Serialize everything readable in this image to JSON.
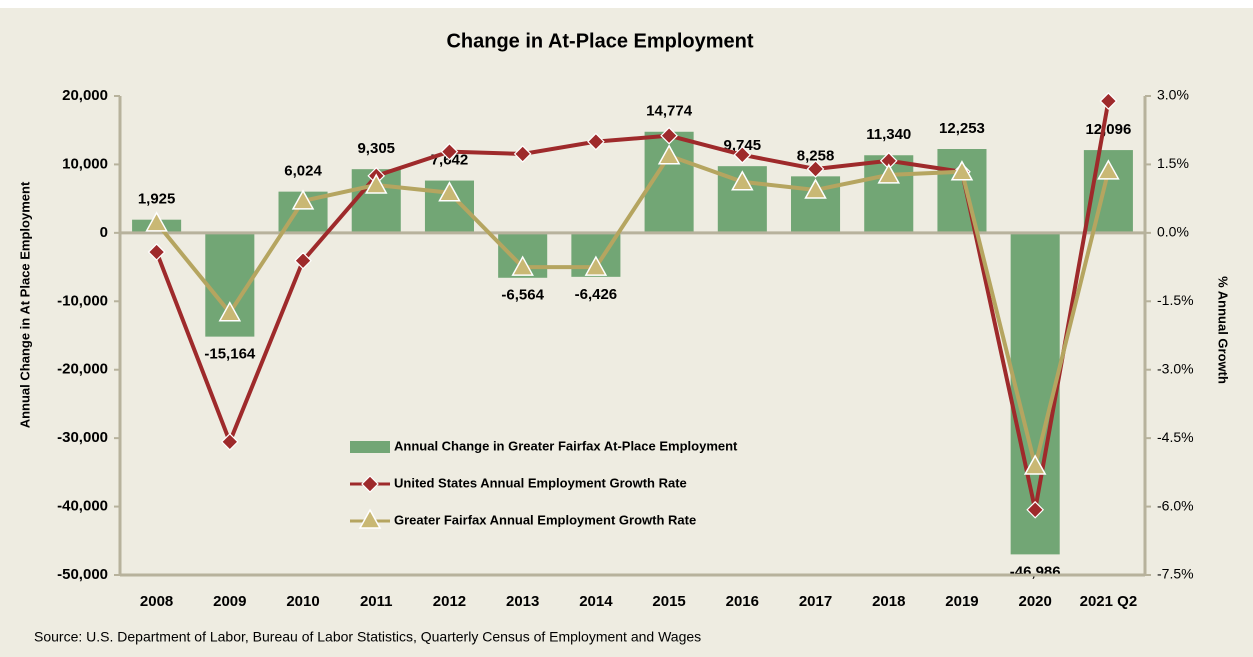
{
  "chart_data": {
    "type": "bar",
    "title": "Change in At-Place Employment",
    "ylabel": "Annual Change in At Place Employment",
    "y2label": "% Annual Growth",
    "source": "Source: U.S. Department of Labor, Bureau of Labor Statistics, Quarterly Census of Employment and Wages",
    "categories": [
      "2008",
      "2009",
      "2010",
      "2011",
      "2012",
      "2013",
      "2014",
      "2015",
      "2016",
      "2017",
      "2018",
      "2019",
      "2020",
      "2021 Q2"
    ],
    "series": [
      {
        "name": "Annual Change in Greater Fairfax At-Place Employment",
        "type": "bar",
        "color": "#72a675",
        "values": [
          1925,
          -15164,
          6024,
          9305,
          7642,
          -6564,
          -6426,
          14774,
          9745,
          8258,
          11340,
          12253,
          -46986,
          12096
        ],
        "value_labels": [
          "1,925",
          "-15,164",
          "6,024",
          "9,305",
          "7,642",
          "-6,564",
          "-6,426",
          "14,774",
          "9,745",
          "8,258",
          "11,340",
          "12,253",
          "-46,986",
          "12,096"
        ]
      },
      {
        "name": "United States Annual Employment Growth Rate",
        "type": "line",
        "axis": "y2",
        "marker": "diamond",
        "color": "#9e2a2b",
        "values": [
          -0.42,
          -4.58,
          -0.61,
          1.25,
          1.78,
          1.73,
          2.0,
          2.13,
          1.71,
          1.4,
          1.58,
          1.34,
          -6.07,
          2.89
        ]
      },
      {
        "name": "Greater Fairfax Annual Employment Growth Rate",
        "type": "line",
        "axis": "y2",
        "marker": "triangle",
        "color": "#b5a560",
        "values": [
          0.22,
          -1.75,
          0.7,
          1.05,
          0.88,
          -0.75,
          -0.75,
          1.69,
          1.12,
          0.94,
          1.27,
          1.34,
          -5.11,
          1.36
        ]
      }
    ],
    "ylim": [
      -50000,
      20000
    ],
    "yticks": [
      {
        "value": -50000,
        "label": "-50,000"
      },
      {
        "value": -40000,
        "label": "-40,000"
      },
      {
        "value": -30000,
        "label": "-30,000"
      },
      {
        "value": -20000,
        "label": "-20,000"
      },
      {
        "value": -10000,
        "label": "-10,000"
      },
      0,
      {
        "value": 10000,
        "label": "10,000"
      },
      {
        "value": 20000,
        "label": "20,000"
      }
    ],
    "y2lim": [
      -7.5,
      3
    ],
    "y2ticks": [
      {
        "value": -7.5,
        "label": "-7.5%"
      },
      {
        "value": -6,
        "label": "-6.0%"
      },
      {
        "value": -4.5,
        "label": "-4.5%"
      },
      {
        "value": -3,
        "label": "-3.0%"
      },
      {
        "value": -1.5,
        "label": "-1.5%"
      },
      {
        "value": 0,
        "label": "0.0%"
      },
      {
        "value": 1.5,
        "label": "1.5%"
      },
      {
        "value": 3,
        "label": "3.0%"
      }
    ],
    "legend": "lower left",
    "grid": false
  }
}
